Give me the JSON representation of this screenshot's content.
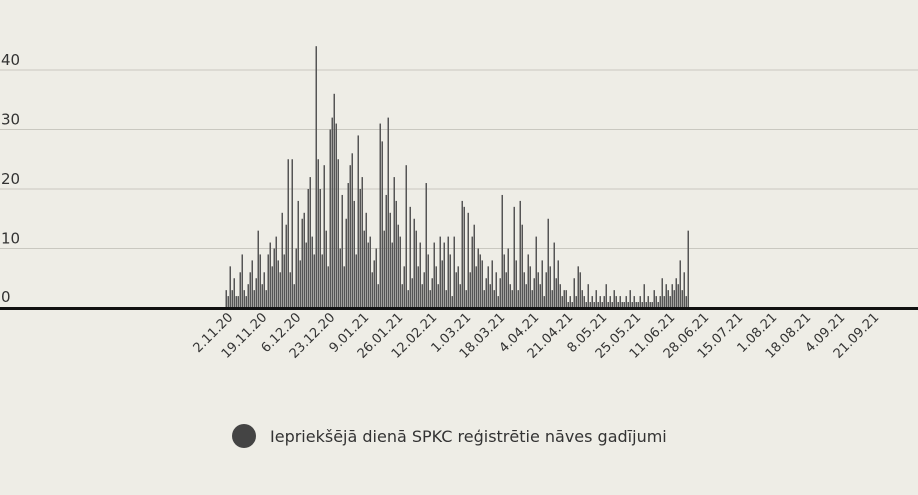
{
  "chart_data": {
    "type": "bar",
    "start_date": "2020-11-02",
    "x_tick_labels": [
      "2.11.20",
      "19.11.20",
      "6.12.20",
      "23.12.20",
      "9.01.21",
      "26.01.21",
      "12.02.21",
      "1.03.21",
      "18.03.21",
      "4.04.21",
      "21.04.21",
      "8.05.21",
      "25.05.21",
      "11.06.21",
      "28.06.21",
      "15.07.21",
      "1.08.21",
      "18.08.21",
      "4.09.21",
      "21.09.21"
    ],
    "y_ticks": [
      0,
      10,
      20,
      30,
      40
    ],
    "ylim": [
      0,
      45
    ],
    "grid": true,
    "legend_position": "bottom-left",
    "series": [
      {
        "name": "Iepriekšējā dienā SPKC reģistrētie nāves gadījumi",
        "color": "#555555",
        "values": [
          3,
          2,
          7,
          3,
          5,
          2,
          2,
          6,
          9,
          3,
          2,
          4,
          6,
          8,
          3,
          5,
          13,
          9,
          4,
          6,
          3,
          9,
          11,
          7,
          10,
          12,
          8,
          6,
          16,
          9,
          14,
          25,
          6,
          25,
          4,
          10,
          18,
          8,
          15,
          16,
          11,
          20,
          22,
          12,
          9,
          44,
          25,
          20,
          9,
          24,
          13,
          7,
          30,
          32,
          36,
          31,
          25,
          10,
          19,
          7,
          15,
          21,
          24,
          26,
          18,
          9,
          29,
          20,
          22,
          13,
          16,
          11,
          12,
          6,
          8,
          10,
          4,
          31,
          28,
          13,
          19,
          32,
          16,
          11,
          22,
          18,
          14,
          12,
          4,
          7,
          24,
          3,
          17,
          5,
          15,
          13,
          7,
          11,
          4,
          6,
          21,
          9,
          3,
          5,
          11,
          7,
          4,
          12,
          8,
          11,
          3,
          12,
          9,
          2,
          12,
          6,
          7,
          4,
          18,
          17,
          3,
          16,
          6,
          12,
          14,
          7,
          10,
          9,
          8,
          3,
          5,
          7,
          4,
          8,
          3,
          6,
          2,
          5,
          19,
          9,
          6,
          10,
          4,
          3,
          17,
          8,
          3,
          18,
          14,
          6,
          4,
          9,
          7,
          3,
          5,
          12,
          6,
          4,
          8,
          2,
          6,
          15,
          7,
          3,
          11,
          5,
          8,
          4,
          2,
          3,
          3,
          1,
          2,
          1,
          5,
          2,
          7,
          6,
          3,
          2,
          1,
          4,
          1,
          2,
          1,
          3,
          1,
          2,
          1,
          2,
          4,
          1,
          2,
          1,
          3,
          2,
          1,
          2,
          1,
          1,
          2,
          1,
          3,
          1,
          2,
          1,
          1,
          2,
          1,
          4,
          1,
          2,
          1,
          1,
          3,
          2,
          1,
          2,
          5,
          2,
          4,
          3,
          2,
          4,
          3,
          5,
          4,
          8,
          3,
          6,
          2,
          13
        ]
      }
    ]
  },
  "legend": {
    "label": "Iepriekšējā dienā SPKC reģistrētie nāves gadījumi",
    "color": "#444444"
  }
}
